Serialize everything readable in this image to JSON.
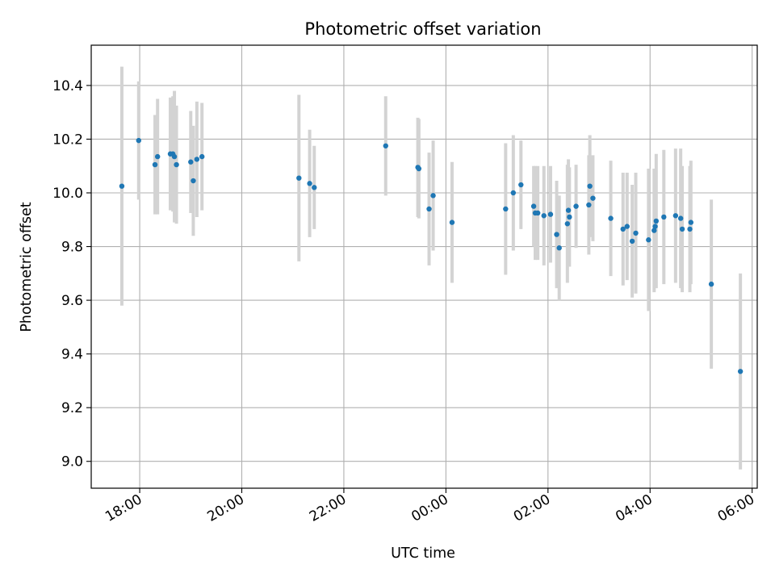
{
  "chart_data": {
    "type": "scatter",
    "title": "Photometric offset variation",
    "xlabel": "UTC time",
    "ylabel": "Photometric offset",
    "x_tick_labels": [
      "18:00",
      "20:00",
      "22:00",
      "00:00",
      "02:00",
      "04:00",
      "06:00"
    ],
    "y_tick_labels": [
      "9.0",
      "9.2",
      "9.4",
      "9.6",
      "9.8",
      "10.0",
      "10.2",
      "10.4"
    ],
    "xlim_hours": [
      17.05,
      30.1
    ],
    "ylim": [
      8.9,
      10.55
    ],
    "grid": true,
    "colors": {
      "marker": "#1f77b4",
      "errorbar": "#d3d3d3",
      "grid": "#b0b0b0"
    },
    "series": [
      {
        "x_hours": [
          17.65,
          17.98,
          18.3,
          18.35,
          18.6,
          18.65,
          18.68,
          18.72,
          19.0,
          19.05,
          19.12,
          19.22,
          21.12,
          21.33,
          21.42,
          22.82,
          23.45,
          23.47,
          23.67,
          23.75,
          24.12,
          25.17,
          25.32,
          25.47,
          25.72,
          25.75,
          25.8,
          25.92,
          26.05,
          26.17,
          26.22,
          26.38,
          26.4,
          26.42,
          26.55,
          26.8,
          26.82,
          26.88,
          27.23,
          27.47,
          27.55,
          27.65,
          27.72,
          27.97,
          28.08,
          28.1,
          28.12,
          28.27,
          28.5,
          28.6,
          28.63,
          28.78,
          28.8,
          29.2,
          29.77
        ],
        "y": [
          10.025,
          10.195,
          10.105,
          10.135,
          10.145,
          10.145,
          10.135,
          10.105,
          10.115,
          10.045,
          10.125,
          10.135,
          10.055,
          10.035,
          10.02,
          10.175,
          10.095,
          10.09,
          9.94,
          9.99,
          9.89,
          9.94,
          10.0,
          10.03,
          9.95,
          9.925,
          9.925,
          9.915,
          9.92,
          9.845,
          9.795,
          9.885,
          9.935,
          9.91,
          9.95,
          9.955,
          10.025,
          9.98,
          9.905,
          9.865,
          9.875,
          9.82,
          9.85,
          9.825,
          9.86,
          9.875,
          9.895,
          9.91,
          9.915,
          9.905,
          9.865,
          9.865,
          9.89,
          9.66,
          9.335
        ],
        "yerr": [
          0.445,
          0.22,
          0.185,
          0.215,
          0.21,
          0.215,
          0.245,
          0.22,
          0.19,
          0.205,
          0.215,
          0.2,
          0.31,
          0.2,
          0.155,
          0.185,
          0.185,
          0.185,
          0.21,
          0.205,
          0.225,
          0.245,
          0.215,
          0.165,
          0.15,
          0.175,
          0.175,
          0.185,
          0.18,
          0.2,
          0.195,
          0.22,
          0.19,
          0.185,
          0.155,
          0.185,
          0.19,
          0.16,
          0.215,
          0.21,
          0.2,
          0.21,
          0.225,
          0.265,
          0.23,
          0.215,
          0.25,
          0.25,
          0.25,
          0.26,
          0.235,
          0.235,
          0.23,
          0.315,
          0.365
        ]
      }
    ]
  }
}
